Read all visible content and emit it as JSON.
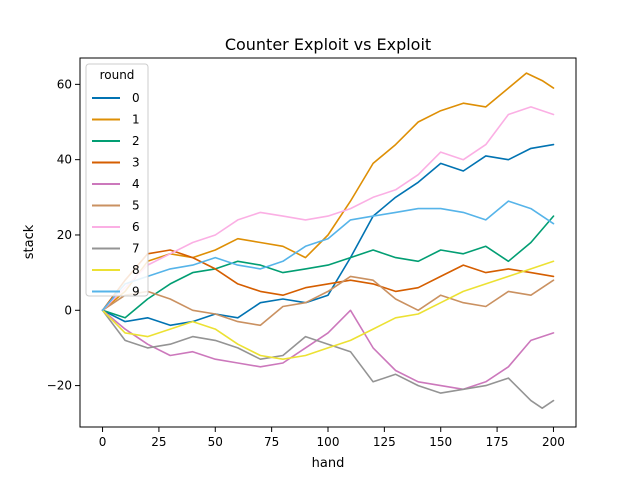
{
  "chart_data": {
    "type": "line",
    "title": "Counter Exploit vs Exploit",
    "xlabel": "hand",
    "ylabel": "stack",
    "xlim": [
      -10,
      210
    ],
    "ylim": [
      -31,
      67
    ],
    "xticks": [
      0,
      25,
      50,
      75,
      100,
      125,
      150,
      175,
      200
    ],
    "yticks": [
      -20,
      0,
      20,
      40,
      60
    ],
    "grid": false,
    "legend": {
      "title": "round",
      "placement": "top-left"
    },
    "series": [
      {
        "name": "0",
        "color": "#0173b2",
        "points": [
          [
            0,
            0
          ],
          [
            10,
            -3
          ],
          [
            20,
            -2
          ],
          [
            30,
            -4
          ],
          [
            40,
            -3
          ],
          [
            50,
            -1
          ],
          [
            60,
            -2
          ],
          [
            70,
            2
          ],
          [
            80,
            3
          ],
          [
            90,
            2
          ],
          [
            100,
            4
          ],
          [
            110,
            14
          ],
          [
            120,
            25
          ],
          [
            130,
            30
          ],
          [
            140,
            34
          ],
          [
            150,
            39
          ],
          [
            160,
            37
          ],
          [
            170,
            41
          ],
          [
            180,
            40
          ],
          [
            190,
            43
          ],
          [
            200,
            44
          ]
        ]
      },
      {
        "name": "1",
        "color": "#de8f05",
        "points": [
          [
            0,
            0
          ],
          [
            10,
            5
          ],
          [
            20,
            13
          ],
          [
            30,
            15
          ],
          [
            40,
            14
          ],
          [
            50,
            16
          ],
          [
            60,
            19
          ],
          [
            70,
            18
          ],
          [
            80,
            17
          ],
          [
            90,
            14
          ],
          [
            100,
            20
          ],
          [
            110,
            29
          ],
          [
            120,
            39
          ],
          [
            130,
            44
          ],
          [
            140,
            50
          ],
          [
            150,
            53
          ],
          [
            160,
            55
          ],
          [
            170,
            54
          ],
          [
            180,
            59
          ],
          [
            188,
            63
          ],
          [
            195,
            61
          ],
          [
            200,
            59
          ]
        ]
      },
      {
        "name": "2",
        "color": "#029e73",
        "points": [
          [
            0,
            0
          ],
          [
            10,
            -2
          ],
          [
            20,
            3
          ],
          [
            30,
            7
          ],
          [
            40,
            10
          ],
          [
            50,
            11
          ],
          [
            60,
            13
          ],
          [
            70,
            12
          ],
          [
            80,
            10
          ],
          [
            90,
            11
          ],
          [
            100,
            12
          ],
          [
            110,
            14
          ],
          [
            120,
            16
          ],
          [
            130,
            14
          ],
          [
            140,
            13
          ],
          [
            150,
            16
          ],
          [
            160,
            15
          ],
          [
            170,
            17
          ],
          [
            180,
            13
          ],
          [
            190,
            18
          ],
          [
            200,
            25
          ]
        ]
      },
      {
        "name": "3",
        "color": "#d55e00",
        "points": [
          [
            0,
            0
          ],
          [
            10,
            8
          ],
          [
            20,
            15
          ],
          [
            30,
            16
          ],
          [
            40,
            14
          ],
          [
            50,
            11
          ],
          [
            60,
            7
          ],
          [
            70,
            5
          ],
          [
            80,
            4
          ],
          [
            90,
            6
          ],
          [
            100,
            7
          ],
          [
            110,
            8
          ],
          [
            120,
            7
          ],
          [
            130,
            5
          ],
          [
            140,
            6
          ],
          [
            150,
            9
          ],
          [
            160,
            12
          ],
          [
            170,
            10
          ],
          [
            180,
            11
          ],
          [
            190,
            10
          ],
          [
            200,
            9
          ]
        ]
      },
      {
        "name": "4",
        "color": "#cc78bc",
        "points": [
          [
            0,
            0
          ],
          [
            10,
            -5
          ],
          [
            20,
            -9
          ],
          [
            30,
            -12
          ],
          [
            40,
            -11
          ],
          [
            50,
            -13
          ],
          [
            60,
            -14
          ],
          [
            70,
            -15
          ],
          [
            80,
            -14
          ],
          [
            90,
            -10
          ],
          [
            100,
            -6
          ],
          [
            110,
            0
          ],
          [
            120,
            -10
          ],
          [
            130,
            -16
          ],
          [
            140,
            -19
          ],
          [
            150,
            -20
          ],
          [
            160,
            -21
          ],
          [
            170,
            -19
          ],
          [
            180,
            -15
          ],
          [
            190,
            -8
          ],
          [
            200,
            -6
          ]
        ]
      },
      {
        "name": "5",
        "color": "#ca9161",
        "points": [
          [
            0,
            0
          ],
          [
            10,
            4
          ],
          [
            20,
            5
          ],
          [
            30,
            3
          ],
          [
            40,
            0
          ],
          [
            50,
            -1
          ],
          [
            60,
            -3
          ],
          [
            70,
            -4
          ],
          [
            80,
            1
          ],
          [
            90,
            2
          ],
          [
            100,
            5
          ],
          [
            110,
            9
          ],
          [
            120,
            8
          ],
          [
            130,
            3
          ],
          [
            140,
            0
          ],
          [
            150,
            4
          ],
          [
            160,
            2
          ],
          [
            170,
            1
          ],
          [
            180,
            5
          ],
          [
            190,
            4
          ],
          [
            200,
            8
          ]
        ]
      },
      {
        "name": "6",
        "color": "#fbafe4",
        "points": [
          [
            0,
            0
          ],
          [
            10,
            6
          ],
          [
            20,
            12
          ],
          [
            30,
            15
          ],
          [
            40,
            18
          ],
          [
            50,
            20
          ],
          [
            60,
            24
          ],
          [
            70,
            26
          ],
          [
            80,
            25
          ],
          [
            90,
            24
          ],
          [
            100,
            25
          ],
          [
            110,
            27
          ],
          [
            120,
            30
          ],
          [
            130,
            32
          ],
          [
            140,
            36
          ],
          [
            150,
            42
          ],
          [
            160,
            40
          ],
          [
            170,
            44
          ],
          [
            180,
            52
          ],
          [
            190,
            54
          ],
          [
            200,
            52
          ]
        ]
      },
      {
        "name": "7",
        "color": "#949494",
        "points": [
          [
            0,
            0
          ],
          [
            10,
            -8
          ],
          [
            20,
            -10
          ],
          [
            30,
            -9
          ],
          [
            40,
            -7
          ],
          [
            50,
            -8
          ],
          [
            60,
            -10
          ],
          [
            70,
            -13
          ],
          [
            80,
            -12
          ],
          [
            90,
            -7
          ],
          [
            100,
            -9
          ],
          [
            110,
            -11
          ],
          [
            120,
            -19
          ],
          [
            130,
            -17
          ],
          [
            140,
            -20
          ],
          [
            150,
            -22
          ],
          [
            160,
            -21
          ],
          [
            170,
            -20
          ],
          [
            180,
            -18
          ],
          [
            190,
            -24
          ],
          [
            195,
            -26
          ],
          [
            200,
            -24
          ]
        ]
      },
      {
        "name": "8",
        "color": "#ece133",
        "points": [
          [
            0,
            0
          ],
          [
            10,
            -6
          ],
          [
            20,
            -7
          ],
          [
            30,
            -5
          ],
          [
            40,
            -3
          ],
          [
            50,
            -5
          ],
          [
            60,
            -9
          ],
          [
            70,
            -12
          ],
          [
            80,
            -13
          ],
          [
            90,
            -12
          ],
          [
            100,
            -10
          ],
          [
            110,
            -8
          ],
          [
            120,
            -5
          ],
          [
            130,
            -2
          ],
          [
            140,
            -1
          ],
          [
            150,
            2
          ],
          [
            160,
            5
          ],
          [
            170,
            7
          ],
          [
            180,
            9
          ],
          [
            190,
            11
          ],
          [
            200,
            13
          ]
        ]
      },
      {
        "name": "9",
        "color": "#56b4e9",
        "points": [
          [
            0,
            0
          ],
          [
            10,
            7
          ],
          [
            20,
            9
          ],
          [
            30,
            11
          ],
          [
            40,
            12
          ],
          [
            50,
            14
          ],
          [
            60,
            12
          ],
          [
            70,
            11
          ],
          [
            80,
            13
          ],
          [
            90,
            17
          ],
          [
            100,
            19
          ],
          [
            110,
            24
          ],
          [
            120,
            25
          ],
          [
            130,
            26
          ],
          [
            140,
            27
          ],
          [
            150,
            27
          ],
          [
            160,
            26
          ],
          [
            170,
            24
          ],
          [
            180,
            29
          ],
          [
            190,
            27
          ],
          [
            200,
            23
          ]
        ]
      }
    ]
  }
}
